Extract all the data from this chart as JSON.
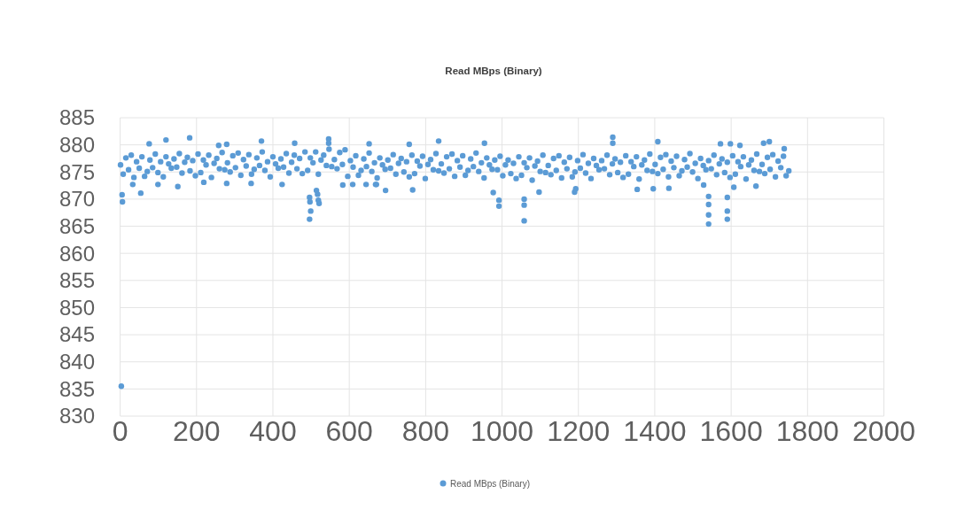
{
  "chart_data": {
    "type": "scatter",
    "title": "Read MBps (Binary)",
    "xlim": [
      0,
      2000
    ],
    "xticks": [
      0,
      200,
      400,
      600,
      800,
      1000,
      1200,
      1400,
      1600,
      1800,
      2000
    ],
    "ylim": [
      830,
      885
    ],
    "yticks": [
      830,
      835,
      840,
      845,
      850,
      855,
      860,
      865,
      870,
      875,
      880,
      885
    ],
    "grid": true,
    "legend": "bottom",
    "marker": "circle",
    "series": [
      {
        "name": "Read MBps (Binary)",
        "color": "#5b9bd5",
        "x": [
          1,
          8,
          15,
          22,
          29,
          36,
          43,
          50,
          57,
          64,
          71,
          78,
          85,
          92,
          99,
          106,
          113,
          120,
          127,
          134,
          141,
          148,
          155,
          162,
          169,
          176,
          183,
          190,
          197,
          204,
          211,
          218,
          225,
          232,
          239,
          246,
          253,
          260,
          267,
          274,
          281,
          288,
          295,
          302,
          309,
          316,
          323,
          330,
          337,
          344,
          351,
          358,
          365,
          372,
          379,
          386,
          393,
          400,
          407,
          414,
          421,
          428,
          435,
          442,
          449,
          456,
          463,
          470,
          477,
          484,
          491,
          498,
          505,
          512,
          519,
          526,
          533,
          540,
          547,
          554,
          561,
          568,
          575,
          582,
          589,
          596,
          603,
          610,
          617,
          624,
          631,
          638,
          645,
          652,
          659,
          666,
          673,
          680,
          687,
          694,
          701,
          708,
          715,
          722,
          729,
          736,
          743,
          750,
          757,
          764,
          771,
          778,
          785,
          792,
          799,
          806,
          813,
          820,
          827,
          834,
          841,
          848,
          855,
          862,
          869,
          876,
          883,
          890,
          897,
          904,
          911,
          918,
          925,
          932,
          939,
          946,
          953,
          960,
          967,
          974,
          981,
          988,
          995,
          1002,
          1009,
          1016,
          1023,
          1030,
          1037,
          1044,
          1051,
          1058,
          1065,
          1072,
          1079,
          1086,
          1093,
          1100,
          1107,
          1114,
          1121,
          1128,
          1135,
          1142,
          1149,
          1156,
          1163,
          1170,
          1177,
          1184,
          1191,
          1198,
          1205,
          1212,
          1219,
          1226,
          1233,
          1240,
          1247,
          1254,
          1261,
          1268,
          1275,
          1282,
          1289,
          1296,
          1303,
          1310,
          1317,
          1324,
          1331,
          1338,
          1345,
          1352,
          1359,
          1366,
          1373,
          1380,
          1387,
          1394,
          1401,
          1408,
          1415,
          1422,
          1429,
          1436,
          1443,
          1450,
          1457,
          1464,
          1471,
          1478,
          1485,
          1492,
          1499,
          1506,
          1513,
          1520,
          1527,
          1534,
          1541,
          1548,
          1555,
          1562,
          1569,
          1576,
          1583,
          1590,
          1597,
          1604,
          1611,
          1618,
          1625,
          1632,
          1639,
          1646,
          1653,
          1660,
          1667,
          1674,
          1681,
          1688,
          1695,
          1702,
          1709,
          1716,
          1723,
          1730,
          1737,
          1744,
          1751,
          3,
          5,
          6,
          54,
          496,
          497,
          499,
          496,
          514,
          517,
          519,
          521,
          977,
          992,
          992,
          1058,
          1058,
          1058,
          1097,
          1190,
          1193,
          1290,
          1290,
          834,
          954,
          757,
          695,
          766,
          669,
          1354,
          1541,
          1541,
          1541,
          1541,
          1590,
          1590,
          1590,
          1408,
          1572,
          1598,
          1623,
          1685,
          1700,
          1739,
          1396,
          1437,
          1528,
          1607,
          1665,
          76,
          120,
          182,
          258,
          279,
          370,
          457,
          546,
          546,
          652,
          33,
          99,
          151,
          219,
          279,
          343,
          424,
          583,
          609,
          644,
          671
        ],
        "values": [
          876.3,
          874.6,
          877.6,
          875.4,
          878.1,
          874.0,
          876.9,
          875.7,
          877.8,
          874.2,
          875.1,
          877.2,
          875.8,
          878.3,
          874.9,
          876.9,
          874.1,
          877.8,
          876.5,
          875.7,
          877.4,
          875.9,
          878.4,
          874.8,
          876.8,
          877.7,
          875.2,
          877.1,
          874.3,
          878.3,
          874.9,
          877.2,
          876.3,
          878.1,
          874.0,
          876.6,
          877.5,
          875.6,
          878.6,
          875.4,
          876.7,
          875.0,
          878.0,
          875.8,
          878.5,
          874.4,
          877.3,
          876.1,
          878.2,
          874.6,
          875.5,
          877.6,
          876.2,
          878.7,
          875.3,
          876.9,
          874.1,
          877.8,
          876.5,
          875.7,
          877.4,
          875.9,
          878.4,
          874.8,
          876.8,
          878.1,
          875.6,
          877.5,
          874.7,
          878.7,
          875.3,
          877.6,
          876.7,
          878.7,
          874.6,
          877.2,
          878.1,
          876.2,
          879.2,
          876.0,
          877.3,
          875.6,
          878.6,
          876.4,
          879.1,
          874.2,
          877.1,
          875.9,
          878.0,
          874.4,
          875.3,
          877.4,
          876.0,
          878.5,
          875.1,
          876.7,
          873.9,
          877.6,
          876.3,
          875.5,
          877.2,
          875.7,
          878.2,
          874.6,
          876.6,
          877.5,
          875.0,
          876.9,
          874.1,
          878.1,
          874.7,
          877.0,
          876.1,
          877.9,
          873.8,
          876.4,
          877.3,
          875.4,
          878.4,
          875.2,
          876.5,
          874.8,
          877.8,
          875.6,
          878.3,
          874.2,
          877.1,
          875.9,
          878.0,
          874.4,
          875.3,
          877.4,
          876.0,
          878.5,
          875.1,
          876.7,
          873.9,
          877.6,
          876.3,
          875.5,
          877.2,
          875.4,
          877.9,
          874.3,
          876.3,
          877.2,
          874.7,
          876.6,
          873.8,
          877.8,
          874.4,
          876.7,
          875.8,
          877.6,
          873.5,
          876.1,
          877.0,
          875.1,
          878.1,
          874.9,
          876.2,
          874.5,
          877.5,
          875.3,
          878.0,
          873.9,
          876.8,
          875.6,
          877.7,
          874.1,
          875.0,
          877.1,
          875.7,
          878.2,
          874.8,
          876.6,
          873.8,
          877.5,
          876.2,
          875.4,
          877.1,
          875.6,
          878.1,
          874.5,
          876.5,
          877.4,
          874.9,
          876.8,
          874.0,
          878.0,
          874.6,
          876.9,
          876.0,
          877.8,
          873.7,
          876.3,
          877.2,
          875.3,
          878.3,
          875.1,
          876.4,
          874.7,
          877.7,
          875.5,
          878.2,
          874.1,
          877.0,
          875.8,
          877.9,
          874.3,
          875.2,
          877.3,
          875.9,
          878.4,
          875.0,
          876.6,
          873.8,
          877.5,
          876.2,
          875.4,
          877.1,
          875.6,
          878.1,
          874.5,
          876.5,
          877.4,
          874.9,
          876.8,
          874.0,
          878.0,
          874.6,
          876.9,
          876.0,
          877.8,
          873.7,
          876.3,
          877.2,
          875.3,
          878.3,
          875.1,
          876.4,
          874.7,
          877.7,
          875.5,
          878.2,
          874.1,
          877.0,
          875.8,
          877.9,
          874.3,
          875.2,
          835.5,
          870.8,
          869.5,
          871.1,
          870.3,
          869.5,
          867.8,
          866.3,
          871.6,
          870.9,
          869.8,
          869.2,
          871.2,
          869.8,
          868.7,
          870.0,
          868.9,
          866.0,
          871.3,
          871.3,
          871.9,
          881.4,
          880.3,
          880.7,
          880.3,
          880.1,
          871.6,
          871.7,
          872.7,
          871.8,
          870.5,
          869.0,
          867.1,
          865.4,
          870.3,
          867.8,
          866.3,
          880.6,
          880.2,
          880.2,
          879.9,
          880.3,
          880.6,
          879.3,
          871.9,
          872.0,
          872.6,
          872.2,
          872.4,
          880.2,
          880.9,
          881.3,
          879.9,
          880.1,
          880.7,
          880.3,
          881.1,
          880.3,
          880.2,
          872.7,
          872.7,
          872.3,
          873.1,
          872.9,
          872.9,
          872.7,
          872.6,
          872.7,
          872.7,
          872.7
        ]
      }
    ]
  }
}
